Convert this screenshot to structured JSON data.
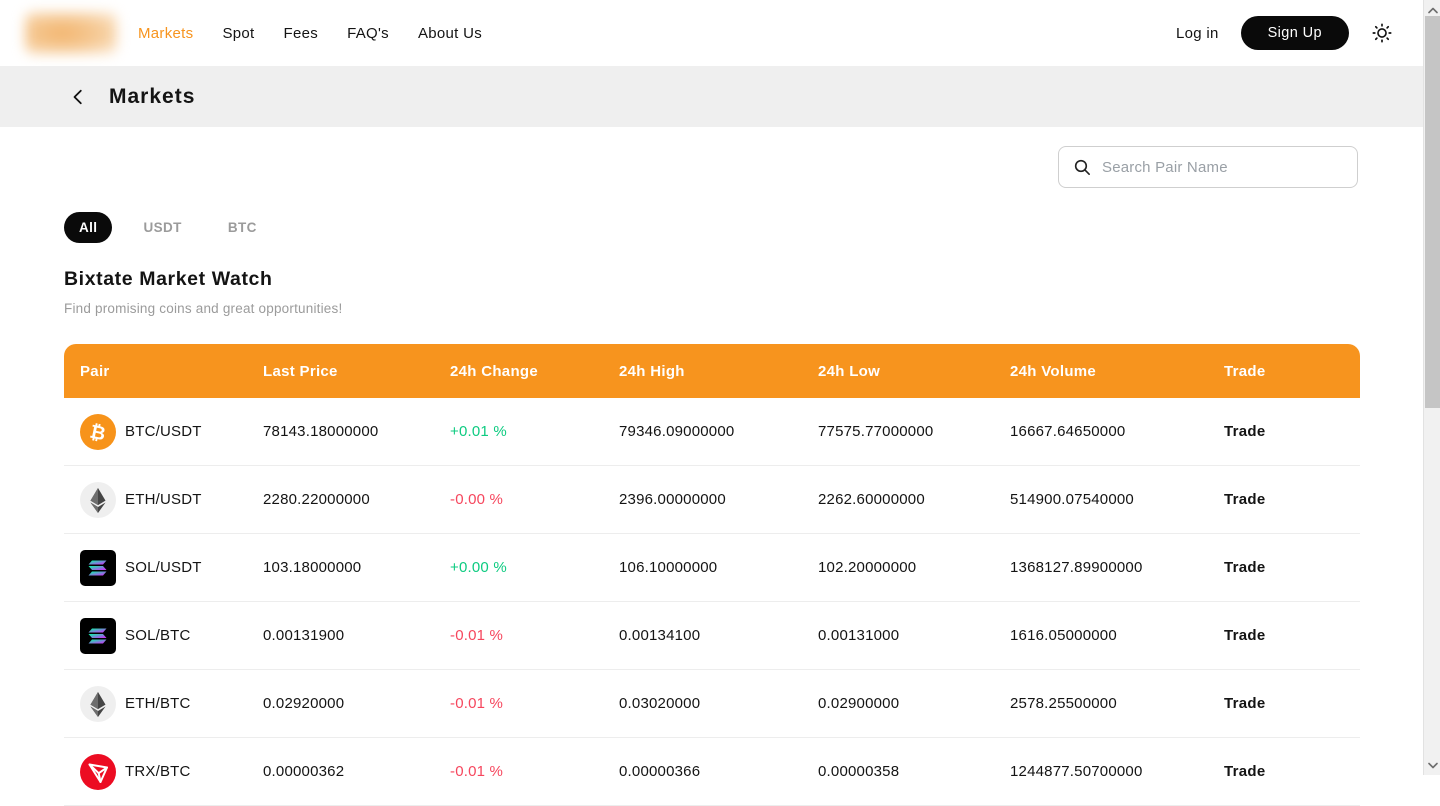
{
  "navbar": {
    "links": [
      {
        "label": "Markets",
        "active": true
      },
      {
        "label": "Spot",
        "active": false
      },
      {
        "label": "Fees",
        "active": false
      },
      {
        "label": "FAQ's",
        "active": false
      },
      {
        "label": "About Us",
        "active": false
      }
    ],
    "login_label": "Log in",
    "signup_label": "Sign Up"
  },
  "page_header": {
    "title": "Markets"
  },
  "search": {
    "placeholder": "Search Pair Name"
  },
  "filters": [
    {
      "label": "All",
      "active": true
    },
    {
      "label": "USDT",
      "active": false
    },
    {
      "label": "BTC",
      "active": false
    }
  ],
  "watch": {
    "title": "Bixtate Market Watch",
    "subtitle": "Find promising coins and great opportunities!"
  },
  "table": {
    "headers": [
      "Pair",
      "Last Price",
      "24h Change",
      "24h High",
      "24h Low",
      "24h Volume",
      "Trade"
    ],
    "trade_label": "Trade",
    "rows": [
      {
        "pair": "BTC/USDT",
        "icon": "btc-icon",
        "last_price": "78143.18000000",
        "change": "+0.01 %",
        "change_dir": "up",
        "high": "79346.09000000",
        "low": "77575.77000000",
        "volume": "16667.64650000"
      },
      {
        "pair": "ETH/USDT",
        "icon": "eth-icon",
        "last_price": "2280.22000000",
        "change": "-0.00 %",
        "change_dir": "down",
        "high": "2396.00000000",
        "low": "2262.60000000",
        "volume": "514900.07540000"
      },
      {
        "pair": "SOL/USDT",
        "icon": "sol-icon",
        "last_price": "103.18000000",
        "change": "+0.00 %",
        "change_dir": "up",
        "high": "106.10000000",
        "low": "102.20000000",
        "volume": "1368127.89900000"
      },
      {
        "pair": "SOL/BTC",
        "icon": "sol-icon",
        "last_price": "0.00131900",
        "change": "-0.01 %",
        "change_dir": "down",
        "high": "0.00134100",
        "low": "0.00131000",
        "volume": "1616.05000000"
      },
      {
        "pair": "ETH/BTC",
        "icon": "eth-icon",
        "last_price": "0.02920000",
        "change": "-0.01 %",
        "change_dir": "down",
        "high": "0.03020000",
        "low": "0.02900000",
        "volume": "2578.25500000"
      },
      {
        "pair": "TRX/BTC",
        "icon": "trx-icon",
        "last_price": "0.00000362",
        "change": "-0.01 %",
        "change_dir": "down",
        "high": "0.00000366",
        "low": "0.00000358",
        "volume": "1244877.50700000"
      }
    ]
  },
  "colors": {
    "accent": "#f7941e",
    "positive": "#0ecb81",
    "negative": "#f6465d",
    "pill_active": "#0a0a0a"
  }
}
